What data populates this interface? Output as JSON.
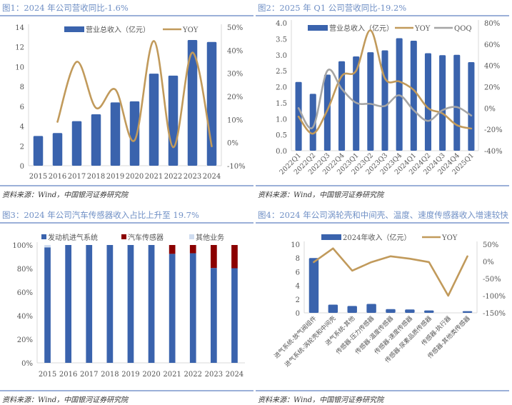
{
  "colors": {
    "bar": "#3a63ad",
    "yoy": "#c19a5b",
    "qoq": "#a5a5a5",
    "sensor": "#8b0000",
    "other": "#cfdcf0",
    "title": "#6f8fc5"
  },
  "source": "资料来源：Wind，中国银河证券研究院",
  "chart_data": [
    {
      "type": "bar+line",
      "title": "图1：2024 年公司营收同比-1.6%",
      "categories": [
        "2015",
        "2016",
        "2017",
        "2018",
        "2019",
        "2020",
        "2021",
        "2022",
        "2023",
        "2024"
      ],
      "series": [
        {
          "name": "营业总收入（亿元）",
          "type": "bar",
          "axis": "left",
          "values": [
            3.0,
            3.3,
            4.5,
            5.2,
            6.4,
            6.5,
            9.3,
            9.1,
            12.7,
            12.5
          ]
        },
        {
          "name": "YOY",
          "type": "line",
          "axis": "right",
          "values": [
            null,
            9,
            35,
            15,
            23,
            1,
            44,
            -2,
            39,
            -1.6
          ]
        }
      ],
      "ylim": [
        0,
        14
      ],
      "yticks": [
        0,
        2,
        4,
        6,
        8,
        10,
        12,
        14
      ],
      "y2lim": [
        -10,
        50
      ],
      "y2ticks": [
        "-10%",
        "0%",
        "10%",
        "20%",
        "30%",
        "40%",
        "50%"
      ],
      "legend": "top",
      "grid": false
    },
    {
      "type": "bar+line",
      "title": "图2：2025 年 Q1 公司营收同比-19.2%",
      "categories": [
        "2022Q1",
        "2022Q2",
        "2022Q3",
        "2022Q4",
        "2023Q1",
        "2023Q2",
        "2023Q3",
        "2023Q4",
        "2024Q1",
        "2024Q2",
        "2024Q3",
        "2024Q4",
        "2025Q1"
      ],
      "series": [
        {
          "name": "营业总收入（亿元）",
          "type": "bar",
          "axis": "left",
          "values": [
            2.15,
            1.78,
            2.38,
            2.8,
            2.95,
            3.08,
            3.14,
            3.52,
            3.44,
            3.05,
            2.99,
            3.0,
            2.77
          ]
        },
        {
          "name": "YOY",
          "type": "line",
          "axis": "right",
          "values": [
            -8,
            -24,
            -2,
            30,
            35,
            73,
            28,
            25,
            17,
            0,
            -5,
            -16,
            -19.2
          ]
        },
        {
          "name": "QOQ",
          "type": "line",
          "axis": "right",
          "values": [
            0,
            -18,
            35,
            18,
            5,
            4,
            2,
            12,
            -2,
            -12,
            -2,
            1,
            -7
          ]
        }
      ],
      "ylim": [
        0,
        4
      ],
      "yticks": [
        "0.0",
        "0.5",
        "1.0",
        "1.5",
        "2.0",
        "2.5",
        "3.0",
        "3.5",
        "4.0"
      ],
      "y2lim": [
        -40,
        80
      ],
      "y2ticks": [
        "-40%",
        "-20%",
        "0%",
        "20%",
        "40%",
        "60%",
        "80%"
      ],
      "legend": "top",
      "grid": false
    },
    {
      "type": "stacked-bar",
      "title": "图3：2024 年公司汽车传感器收入占比上升至 19.7%",
      "categories": [
        "2015",
        "2016",
        "2017",
        "2018",
        "2019",
        "2020",
        "2021",
        "2022",
        "2023",
        "2024"
      ],
      "series": [
        {
          "name": "发动机进气系统",
          "values": [
            98,
            100,
            100,
            100,
            100,
            100,
            92.5,
            93,
            80.5,
            80.3
          ]
        },
        {
          "name": "汽车传感器",
          "values": [
            0,
            0,
            0,
            0,
            0,
            0,
            7.5,
            7,
            19.5,
            19.7
          ]
        },
        {
          "name": "其他业务",
          "values": [
            2,
            0,
            0,
            0,
            0,
            0,
            0,
            0,
            0,
            0
          ]
        }
      ],
      "ylim": [
        0,
        100
      ],
      "yticks": [
        "0%",
        "20%",
        "40%",
        "60%",
        "80%",
        "100%"
      ],
      "legend": "top",
      "grid": false
    },
    {
      "type": "bar+line",
      "title": "图4：2024 年公司涡轮壳和中间壳、温度、速度传感器收入增速较快",
      "categories": [
        "进气系统-放气阀组件",
        "进气系统-涡轮壳和中间壳",
        "进气系统-其他",
        "传感器-压力传感器",
        "传感器-温度传感器",
        "传感器-速度传感器",
        "传感器-尿素品质传感器",
        "传感器-执行器",
        "传感器-其他类传感器"
      ],
      "series": [
        {
          "name": "2024年收入（亿元）",
          "type": "bar",
          "axis": "left",
          "values": [
            8.0,
            1.2,
            1.0,
            1.3,
            0.55,
            0.5,
            0.35,
            0,
            0.25
          ]
        },
        {
          "name": "YOY",
          "type": "line",
          "axis": "right",
          "values": [
            -2,
            38,
            -27,
            -2,
            15,
            8,
            -2,
            -100,
            15
          ]
        }
      ],
      "ylim": [
        0,
        10
      ],
      "yticks": [
        0,
        2,
        4,
        6,
        8,
        10
      ],
      "y2lim": [
        -150,
        50
      ],
      "y2ticks": [
        "-150%",
        "-100%",
        "-50%",
        "0%",
        "50%"
      ],
      "legend": "top",
      "grid": false
    }
  ]
}
